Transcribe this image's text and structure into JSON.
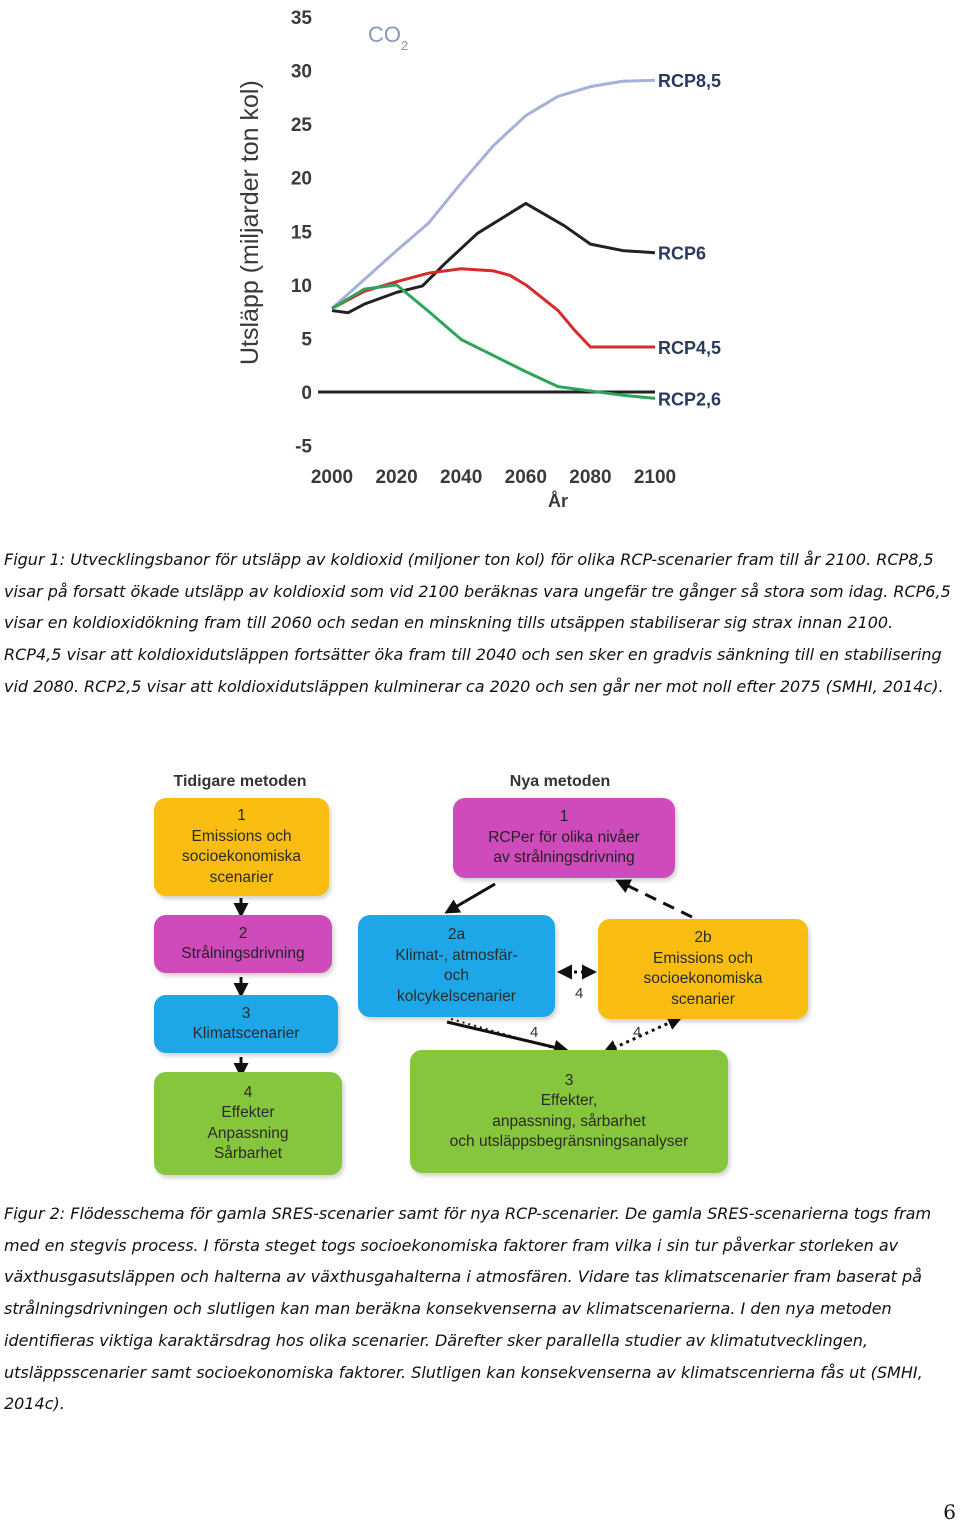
{
  "chart_data": {
    "type": "line",
    "title": "CO2",
    "title_main": "CO",
    "title_sub": "2",
    "ylabel": "Utsläpp (miljarder ton kol)",
    "xlabel": "År",
    "ylim": [
      -5,
      35
    ],
    "xlim": [
      2000,
      2100
    ],
    "yticks": [
      35,
      30,
      25,
      20,
      15,
      10,
      5,
      0,
      -5
    ],
    "xticks": [
      2000,
      2020,
      2040,
      2060,
      2080,
      2100
    ],
    "series": [
      {
        "name": "RCP8,5",
        "color": "#a7b0d9",
        "x": [
          2000,
          2010,
          2020,
          2030,
          2040,
          2050,
          2060,
          2070,
          2080,
          2090,
          2100
        ],
        "y": [
          7.8,
          10.5,
          13.2,
          15.8,
          19.5,
          23.0,
          25.8,
          27.6,
          28.5,
          29.0,
          29.1
        ]
      },
      {
        "name": "RCP6",
        "color": "#222222",
        "x": [
          2000,
          2005,
          2010,
          2020,
          2028,
          2035,
          2045,
          2060,
          2072,
          2080,
          2090,
          2100
        ],
        "y": [
          7.6,
          7.4,
          8.2,
          9.3,
          9.9,
          12.0,
          14.8,
          17.6,
          15.5,
          13.8,
          13.2,
          13.0
        ]
      },
      {
        "name": "RCP4,5",
        "color": "#d62b2b",
        "x": [
          2000,
          2010,
          2020,
          2030,
          2040,
          2050,
          2055,
          2060,
          2070,
          2075,
          2080,
          2090,
          2100
        ],
        "y": [
          7.8,
          9.4,
          10.3,
          11.1,
          11.5,
          11.3,
          10.9,
          10.0,
          7.6,
          5.8,
          4.2,
          4.2,
          4.2
        ]
      },
      {
        "name": "RCP2,6",
        "color": "#2ea35a",
        "x": [
          2000,
          2010,
          2020,
          2030,
          2040,
          2050,
          2060,
          2070,
          2080,
          2090,
          2100
        ],
        "y": [
          7.8,
          9.6,
          10.0,
          7.5,
          4.9,
          3.4,
          1.9,
          0.5,
          0.1,
          -0.3,
          -0.6
        ]
      }
    ]
  },
  "caption1": "Figur 1: Utvecklingsbanor för utsläpp av koldioxid (miljoner ton kol) för olika RCP-scenarier fram till år 2100. RCP8,5 visar på forsatt ökade utsläpp av koldioxid som vid 2100 beräknas vara ungefär tre gånger så stora som idag. RCP6,5 visar en koldioxidökning fram till 2060 och sedan en minskning tills utsäppen stabiliserar sig strax innan 2100. RCP4,5 visar att koldioxidutsläppen fortsätter öka fram till 2040 och sen sker en gradvis sänkning till en stabilisering vid 2080. RCP2,5 visar att koldioxidutsläppen kulminerar ca 2020 och sen går ner mot noll efter 2075 (SMHI, 2014c).",
  "flowchart": {
    "old_heading": "Tidigare metoden",
    "new_heading": "Nya metoden",
    "old_steps": [
      {
        "num": "1",
        "lines": [
          "Emissions och",
          "socioekonomiska",
          "scenarier"
        ]
      },
      {
        "num": "2",
        "lines": [
          "Strålningsdrivning"
        ]
      },
      {
        "num": "3",
        "lines": [
          "Klimatscenarier"
        ]
      },
      {
        "num": "4",
        "lines": [
          "Effekter",
          "Anpassning",
          "Sårbarhet"
        ]
      }
    ],
    "new_steps": {
      "s1": {
        "num": "1",
        "lines": [
          "RCPer för olika nivåer",
          "av strålningsdrivning"
        ]
      },
      "s2a": {
        "num": "2a",
        "lines": [
          "Klimat-, atmosfär-",
          "och",
          "kolcykelscenarier"
        ]
      },
      "s2b": {
        "num": "2b",
        "lines": [
          "Emissions och",
          "socioekonomiska",
          "scenarier"
        ]
      },
      "s3": {
        "num": "3",
        "lines": [
          "Effekter,",
          "anpassning, sårbarhet",
          "och utsläppsbegränsningsanalyser"
        ]
      }
    },
    "arrow_label": "4"
  },
  "caption2": "Figur 2: Flödesschema för gamla SRES-scenarier samt för nya RCP-scenarier. De gamla SRES-scenarierna togs fram med en stegvis process. I första steget togs socioekonomiska faktorer fram vilka i sin tur påverkar storleken av växthusgasutsläppen och halterna av växthusgahalterna i atmosfären. Vidare tas klimatscenarier fram baserat på strålningsdrivningen och slutligen kan man beräkna konsekvenserna av klimatscenarierna. I den nya metoden identifieras viktiga karaktärsdrag hos olika scenarier. Därefter sker parallella studier av klimatutvecklingen, utsläppsscenarier samt socioekonomiska faktorer. Slutligen kan konsekvenserna av klimatscenrierna fås ut (SMHI, 2014c).",
  "page_number": "6"
}
